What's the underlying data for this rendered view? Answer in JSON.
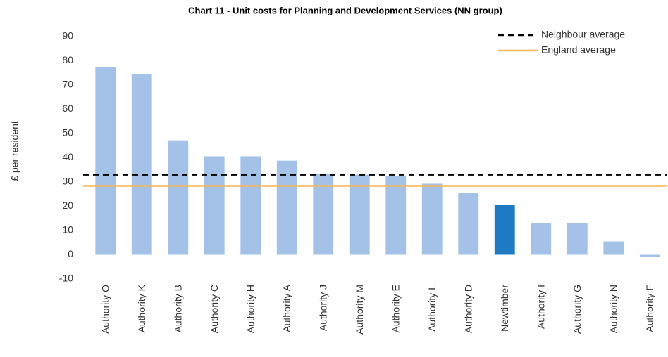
{
  "chart_data": {
    "type": "bar",
    "title": "Chart 11 - Unit costs for Planning and Development Services (NN group)",
    "y_label": "£ per resident",
    "categories": [
      "Authority O",
      "Authority K",
      "Authority B",
      "Authority C",
      "Authority H",
      "Authority A",
      "Authority J",
      "Authority M",
      "Authority E",
      "Authority L",
      "Authority D",
      "Newtimber",
      "Authority I",
      "Authority G",
      "Authority N",
      "Authority F"
    ],
    "values": [
      77.5,
      74.5,
      47.2,
      40.6,
      40.6,
      38.8,
      33.3,
      33,
      32.5,
      29.3,
      25.5,
      20.6,
      13,
      13,
      5.5,
      -1
    ],
    "colors": [
      "#a4c2e8",
      "#a4c2e8",
      "#a4c2e8",
      "#a4c2e8",
      "#a4c2e8",
      "#a4c2e8",
      "#a4c2e8",
      "#a4c2e8",
      "#a4c2e8",
      "#a4c2e8",
      "#a4c2e8",
      "#1f7ac4",
      "#a4c2e8",
      "#a4c2e8",
      "#a4c2e8",
      "#a4c2e8"
    ],
    "reference_lines": [
      {
        "name": "Neighbour average",
        "value": 33,
        "color": "#000000",
        "dashed": true
      },
      {
        "name": "England average",
        "value": 28.4,
        "color": "#f6b654",
        "dashed": false
      }
    ],
    "ylim": [
      -10,
      90
    ],
    "yticks": [
      -10,
      0,
      10,
      20,
      30,
      40,
      50,
      60,
      70,
      80,
      90
    ],
    "grid": false,
    "legend": "top-right"
  }
}
